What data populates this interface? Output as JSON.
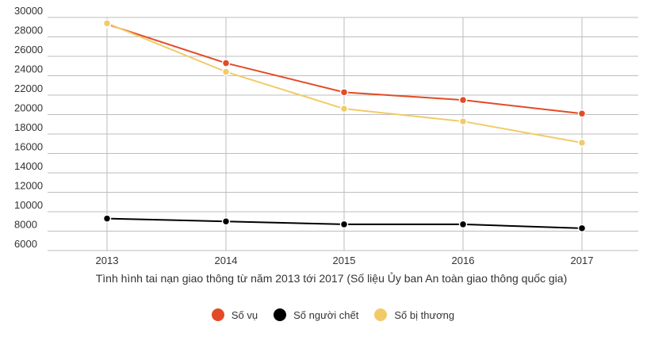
{
  "chart_data": {
    "type": "line",
    "x": [
      "2013",
      "2014",
      "2015",
      "2016",
      "2017"
    ],
    "xlabel": "Tình hình tai nạn giao thông từ năm 2013 tới 2017 (Số liệu Ủy ban An toàn giao thông quốc gia)",
    "ylabel": "",
    "ylim": [
      6000,
      30000
    ],
    "yticks": [
      "30000",
      "28000",
      "26000",
      "24000",
      "22000",
      "20000",
      "18000",
      "16000",
      "14000",
      "12000",
      "10000",
      "8000",
      "6000"
    ],
    "grid": true,
    "legend_position": "bottom",
    "series": [
      {
        "name": "Số vụ",
        "color": "#e34b26",
        "values": [
          29300,
          25300,
          22300,
          21500,
          20100
        ]
      },
      {
        "name": "Số người chết",
        "color": "#000000",
        "values": [
          9300,
          9000,
          8700,
          8700,
          8300
        ]
      },
      {
        "name": "Số bị thương",
        "color": "#f1cb6a",
        "values": [
          29400,
          24400,
          20600,
          19300,
          17100
        ]
      }
    ]
  }
}
